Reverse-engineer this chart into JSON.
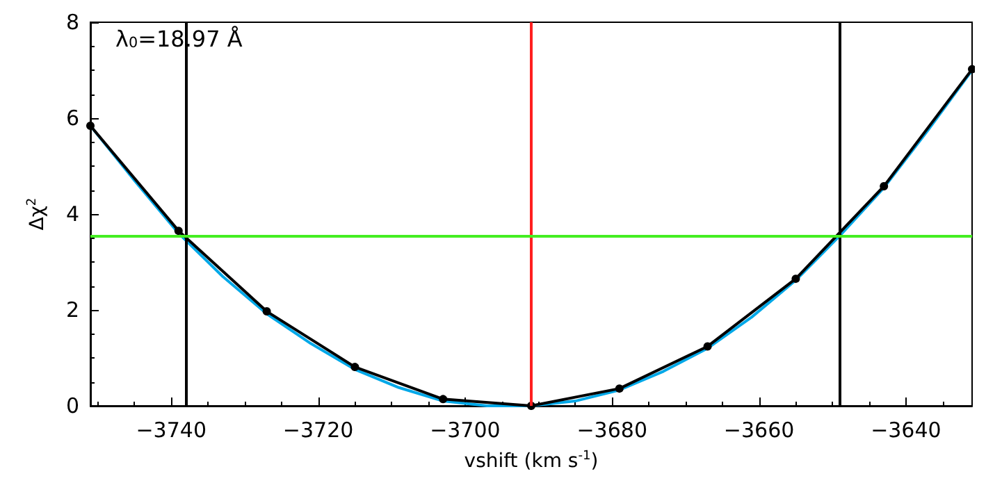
{
  "chart_data": {
    "type": "line",
    "xlabel": "vshift (km s$^{-1}$)",
    "ylabel": "Δχ$^{2}$",
    "annotations": [
      "λ$_{0}$=18.97 Å"
    ],
    "xlim": [
      -3751,
      -3631
    ],
    "xticks": [
      -3740,
      -3720,
      -3700,
      -3680,
      -3660,
      -3640
    ],
    "ylim": [
      0,
      8
    ],
    "yticks": [
      0,
      2,
      4,
      6,
      8
    ],
    "grid": false,
    "series": [
      {
        "color": "#00a8e8",
        "marker": "none",
        "x": [
          -3751,
          -3745,
          -3739,
          -3733,
          -3727,
          -3721,
          -3715,
          -3709,
          -3703,
          -3697,
          -3691,
          -3685,
          -3679,
          -3673,
          -3667,
          -3661,
          -3655,
          -3649,
          -3643,
          -3637,
          -3631
        ],
        "values": [
          5.84,
          4.7,
          3.6,
          2.7,
          1.92,
          1.3,
          0.76,
          0.38,
          0.1,
          0.0,
          0.0,
          0.1,
          0.33,
          0.72,
          1.2,
          1.85,
          2.62,
          3.55,
          4.55,
          5.75,
          7.0
        ]
      },
      {
        "color": "#000000",
        "marker": "circle",
        "x": [
          -3751,
          -3739,
          -3727,
          -3715,
          -3703,
          -3691,
          -3679,
          -3667,
          -3655,
          -3643,
          -3631
        ],
        "values": [
          5.84,
          3.65,
          1.97,
          0.81,
          0.14,
          0.0,
          0.36,
          1.24,
          2.65,
          4.58,
          7.02
        ]
      }
    ],
    "ref_lines": [
      {
        "axis": "x",
        "value": -3738,
        "color": "#000000"
      },
      {
        "axis": "x",
        "value": -3649,
        "color": "#000000"
      },
      {
        "axis": "x",
        "value": -3691,
        "color": "#ff2020"
      },
      {
        "axis": "y",
        "value": 3.53,
        "color": "#44ee22"
      }
    ]
  }
}
